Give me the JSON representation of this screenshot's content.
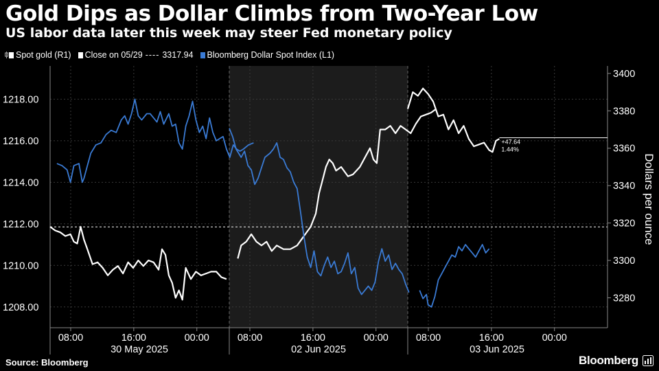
{
  "header": {
    "title": "Gold Dips as Dollar Climbs from Two-Year Low",
    "subtitle": "US labor data later this week may steer Fed monetary policy"
  },
  "legend": {
    "spot_gold": "Spot gold (R1)",
    "close": "Close on 05/29",
    "close_value": "3317.94",
    "dollar_index": "Bloomberg Dollar Spot Index  (L1)"
  },
  "footer": {
    "source": "Source: Bloomberg",
    "brand": "Bloomberg"
  },
  "colors": {
    "gold": "#ffffff",
    "dollar": "#3a7bd5",
    "background": "#000000",
    "shade": "#1c1c1c"
  },
  "chart_data": {
    "type": "line",
    "title": "Gold Dips as Dollar Climbs from Two-Year Low",
    "y_left_ticks": [
      "1208.00",
      "1210.00",
      "1212.00",
      "1214.00",
      "1216.00",
      "1218.00"
    ],
    "y_left_range": [
      1207.0,
      1219.6
    ],
    "y_right_ticks": [
      "3280",
      "3300",
      "3320",
      "3340",
      "3360",
      "3380",
      "3400"
    ],
    "y_right_range": [
      3264,
      3404
    ],
    "y_right_label": "Dollars per ounce",
    "x_time_ticks": [
      "08:00",
      "16:00",
      "00:00",
      "08:00",
      "16:00",
      "00:00",
      "08:00",
      "16:00",
      "00:00"
    ],
    "x_date_labels": [
      "30 May 2025",
      "02 Jun 2025",
      "03 Jun 2025"
    ],
    "close_reference": 3317.94,
    "last_value": {
      "price": 3365.6,
      "change": "+47.64",
      "change_pct": "1.44%"
    },
    "series": [
      {
        "name": "Spot gold (R1)",
        "axis": "right",
        "color": "#ffffff",
        "segments": [
          {
            "day": 0,
            "points": [
              [
                0.0,
                3318
              ],
              [
                0.03,
                3316
              ],
              [
                0.06,
                3315
              ],
              [
                0.09,
                3313
              ],
              [
                0.12,
                3314
              ],
              [
                0.14,
                3310
              ],
              [
                0.16,
                3309
              ],
              [
                0.18,
                3318
              ],
              [
                0.2,
                3311
              ],
              [
                0.22,
                3306
              ],
              [
                0.25,
                3298
              ],
              [
                0.28,
                3299
              ],
              [
                0.31,
                3296
              ],
              [
                0.34,
                3292
              ],
              [
                0.37,
                3295
              ],
              [
                0.4,
                3297
              ],
              [
                0.43,
                3293
              ],
              [
                0.46,
                3299
              ],
              [
                0.49,
                3296
              ],
              [
                0.52,
                3300
              ],
              [
                0.55,
                3297
              ],
              [
                0.58,
                3300
              ],
              [
                0.61,
                3299
              ],
              [
                0.64,
                3295
              ],
              [
                0.66,
                3306
              ],
              [
                0.68,
                3303
              ],
              [
                0.7,
                3292
              ],
              [
                0.72,
                3288
              ],
              [
                0.74,
                3280
              ],
              [
                0.76,
                3284
              ],
              [
                0.78,
                3279
              ],
              [
                0.8,
                3296
              ],
              [
                0.83,
                3290
              ],
              [
                0.86,
                3294
              ],
              [
                0.89,
                3292
              ],
              [
                0.92,
                3293
              ],
              [
                0.95,
                3294
              ],
              [
                0.98,
                3294
              ],
              [
                1.01,
                3291
              ],
              [
                1.04,
                3290
              ]
            ]
          },
          {
            "day": 1,
            "points": [
              [
                0.05,
                3301
              ],
              [
                0.07,
                3308
              ],
              [
                0.1,
                3310
              ],
              [
                0.13,
                3314
              ],
              [
                0.16,
                3310
              ],
              [
                0.19,
                3308
              ],
              [
                0.22,
                3310
              ],
              [
                0.25,
                3305
              ],
              [
                0.28,
                3308
              ],
              [
                0.32,
                3306
              ],
              [
                0.36,
                3306
              ],
              [
                0.4,
                3308
              ],
              [
                0.44,
                3313
              ],
              [
                0.48,
                3318
              ],
              [
                0.51,
                3325
              ],
              [
                0.53,
                3336
              ],
              [
                0.55,
                3343
              ],
              [
                0.57,
                3350
              ],
              [
                0.59,
                3354
              ],
              [
                0.61,
                3352
              ],
              [
                0.63,
                3348
              ],
              [
                0.66,
                3350
              ],
              [
                0.7,
                3345
              ],
              [
                0.73,
                3346
              ],
              [
                0.77,
                3350
              ],
              [
                0.8,
                3355
              ],
              [
                0.83,
                3360
              ],
              [
                0.85,
                3354
              ],
              [
                0.87,
                3352
              ],
              [
                0.89,
                3370
              ],
              [
                0.92,
                3370
              ],
              [
                0.95,
                3372
              ],
              [
                0.98,
                3368
              ],
              [
                1.01,
                3372
              ],
              [
                1.04,
                3370
              ],
              [
                1.07,
                3368
              ],
              [
                1.1,
                3373
              ],
              [
                1.13,
                3377
              ],
              [
                1.16,
                3378
              ],
              [
                1.19,
                3379
              ],
              [
                1.22,
                3381
              ]
            ]
          },
          {
            "day": 2,
            "points": [
              [
                0.0,
                3381
              ],
              [
                0.03,
                3390
              ],
              [
                0.06,
                3388
              ],
              [
                0.09,
                3392
              ],
              [
                0.12,
                3389
              ],
              [
                0.15,
                3385
              ],
              [
                0.18,
                3377
              ],
              [
                0.21,
                3378
              ],
              [
                0.24,
                3370
              ],
              [
                0.27,
                3375
              ],
              [
                0.3,
                3368
              ],
              [
                0.33,
                3372
              ],
              [
                0.36,
                3365
              ],
              [
                0.39,
                3361
              ],
              [
                0.42,
                3362
              ],
              [
                0.45,
                3363
              ],
              [
                0.48,
                3359
              ],
              [
                0.5,
                3358
              ],
              [
                0.52,
                3364
              ],
              [
                0.54,
                3365
              ]
            ]
          }
        ]
      },
      {
        "name": "Bloomberg Dollar Spot Index  (L1)",
        "axis": "left",
        "color": "#3a7bd5",
        "segments": [
          {
            "day": 0,
            "points": [
              [
                0.04,
                1214.9
              ],
              [
                0.07,
                1214.8
              ],
              [
                0.1,
                1214.6
              ],
              [
                0.12,
                1214.0
              ],
              [
                0.14,
                1214.8
              ],
              [
                0.17,
                1214.9
              ],
              [
                0.19,
                1214.0
              ],
              [
                0.2,
                1214.2
              ],
              [
                0.22,
                1214.8
              ],
              [
                0.24,
                1215.4
              ],
              [
                0.27,
                1215.8
              ],
              [
                0.3,
                1215.9
              ],
              [
                0.33,
                1216.3
              ],
              [
                0.36,
                1216.5
              ],
              [
                0.39,
                1216.4
              ],
              [
                0.42,
                1217.0
              ],
              [
                0.44,
                1217.2
              ],
              [
                0.46,
                1216.8
              ],
              [
                0.48,
                1217.3
              ],
              [
                0.5,
                1218.0
              ],
              [
                0.52,
                1217.2
              ],
              [
                0.54,
                1217.0
              ],
              [
                0.57,
                1217.3
              ],
              [
                0.59,
                1217.3
              ],
              [
                0.61,
                1217.1
              ],
              [
                0.63,
                1216.9
              ],
              [
                0.65,
                1217.4
              ],
              [
                0.67,
                1216.8
              ],
              [
                0.7,
                1217.3
              ],
              [
                0.72,
                1216.7
              ],
              [
                0.74,
                1216.8
              ],
              [
                0.76,
                1215.9
              ],
              [
                0.78,
                1215.6
              ],
              [
                0.8,
                1216.7
              ],
              [
                0.82,
                1217.2
              ],
              [
                0.84,
                1217.9
              ],
              [
                0.86,
                1217.0
              ],
              [
                0.88,
                1216.4
              ],
              [
                0.9,
                1216.7
              ],
              [
                0.92,
                1216.1
              ],
              [
                0.94,
                1217.1
              ],
              [
                0.96,
                1216.4
              ],
              [
                0.98,
                1216.0
              ],
              [
                1.0,
                1216.1
              ],
              [
                1.02,
                1216.2
              ],
              [
                1.04,
                1215.6
              ],
              [
                1.06,
                1215.2
              ],
              [
                1.08,
                1215.8
              ],
              [
                1.1,
                1215.6
              ],
              [
                1.12,
                1215.5
              ],
              [
                1.14,
                1215.6
              ],
              [
                1.17,
                1215.8
              ],
              [
                1.2,
                1215.9
              ]
            ]
          },
          {
            "day": 1,
            "points": [
              [
                0.0,
                1216.6
              ],
              [
                0.02,
                1216.2
              ],
              [
                0.04,
                1215.6
              ],
              [
                0.07,
                1215.2
              ],
              [
                0.09,
                1215.5
              ],
              [
                0.11,
                1214.8
              ],
              [
                0.13,
                1214.6
              ],
              [
                0.15,
                1213.9
              ],
              [
                0.17,
                1214.2
              ],
              [
                0.19,
                1214.7
              ],
              [
                0.21,
                1215.2
              ],
              [
                0.24,
                1215.4
              ],
              [
                0.26,
                1215.6
              ],
              [
                0.28,
                1215.9
              ],
              [
                0.3,
                1215.2
              ],
              [
                0.32,
                1215.1
              ],
              [
                0.34,
                1214.7
              ],
              [
                0.36,
                1214.5
              ],
              [
                0.38,
                1214.0
              ],
              [
                0.4,
                1213.7
              ],
              [
                0.42,
                1212.6
              ],
              [
                0.44,
                1211.4
              ],
              [
                0.46,
                1210.4
              ],
              [
                0.48,
                1209.9
              ],
              [
                0.5,
                1210.7
              ],
              [
                0.52,
                1209.7
              ],
              [
                0.54,
                1209.5
              ],
              [
                0.56,
                1210.0
              ],
              [
                0.58,
                1210.4
              ],
              [
                0.6,
                1209.9
              ],
              [
                0.62,
                1210.2
              ],
              [
                0.64,
                1209.6
              ],
              [
                0.66,
                1209.7
              ],
              [
                0.68,
                1210.1
              ],
              [
                0.7,
                1210.6
              ],
              [
                0.72,
                1209.6
              ],
              [
                0.74,
                1209.9
              ],
              [
                0.76,
                1208.9
              ],
              [
                0.78,
                1208.6
              ],
              [
                0.8,
                1208.8
              ],
              [
                0.82,
                1209.0
              ],
              [
                0.84,
                1208.8
              ],
              [
                0.86,
                1209.2
              ],
              [
                0.88,
                1210.2
              ],
              [
                0.9,
                1210.8
              ],
              [
                0.92,
                1210.2
              ],
              [
                0.94,
                1210.5
              ],
              [
                0.96,
                1209.8
              ],
              [
                0.98,
                1210.1
              ],
              [
                1.0,
                1209.8
              ],
              [
                1.02,
                1209.6
              ],
              [
                1.04,
                1209.1
              ],
              [
                1.06,
                1208.7
              ]
            ]
          },
          {
            "day": 2,
            "points": [
              [
                0.07,
                1208.8
              ],
              [
                0.09,
                1208.4
              ],
              [
                0.11,
                1208.6
              ],
              [
                0.12,
                1208.1
              ],
              [
                0.14,
                1208.0
              ],
              [
                0.16,
                1208.5
              ],
              [
                0.18,
                1209.3
              ],
              [
                0.2,
                1209.6
              ],
              [
                0.22,
                1209.9
              ],
              [
                0.24,
                1210.2
              ],
              [
                0.26,
                1210.5
              ],
              [
                0.28,
                1210.4
              ],
              [
                0.3,
                1210.9
              ],
              [
                0.32,
                1210.7
              ],
              [
                0.34,
                1211.0
              ],
              [
                0.36,
                1210.8
              ],
              [
                0.38,
                1210.6
              ],
              [
                0.4,
                1210.4
              ],
              [
                0.42,
                1210.7
              ],
              [
                0.44,
                1211.0
              ],
              [
                0.46,
                1210.6
              ],
              [
                0.48,
                1210.8
              ]
            ]
          }
        ]
      }
    ]
  }
}
